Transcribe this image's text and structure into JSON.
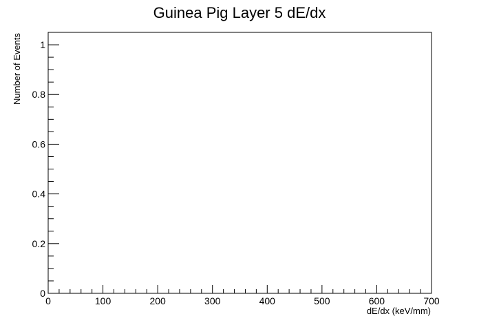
{
  "chart_data": {
    "type": "bar",
    "title": "Guinea Pig Layer 5 dE/dx",
    "xlabel": "dE/dx (keV/mm)",
    "ylabel": "Number of Events",
    "xlim": [
      0,
      700
    ],
    "ylim": [
      0,
      1.05
    ],
    "x_ticks": [
      0,
      100,
      200,
      300,
      400,
      500,
      600,
      700
    ],
    "x_tick_labels": [
      "0",
      "100",
      "200",
      "300",
      "400",
      "500",
      "600",
      "700"
    ],
    "y_ticks": [
      0,
      0.2,
      0.4,
      0.6,
      0.8,
      1
    ],
    "y_tick_labels": [
      "0",
      "0.2",
      "0.4",
      "0.6",
      "0.8",
      "1"
    ],
    "x_minor_step": 20,
    "y_minor_step": 0.05,
    "grid": false,
    "legend": "none",
    "categories": [],
    "values": [],
    "colors": {
      "frame": "#000000",
      "background": "#ffffff"
    }
  }
}
